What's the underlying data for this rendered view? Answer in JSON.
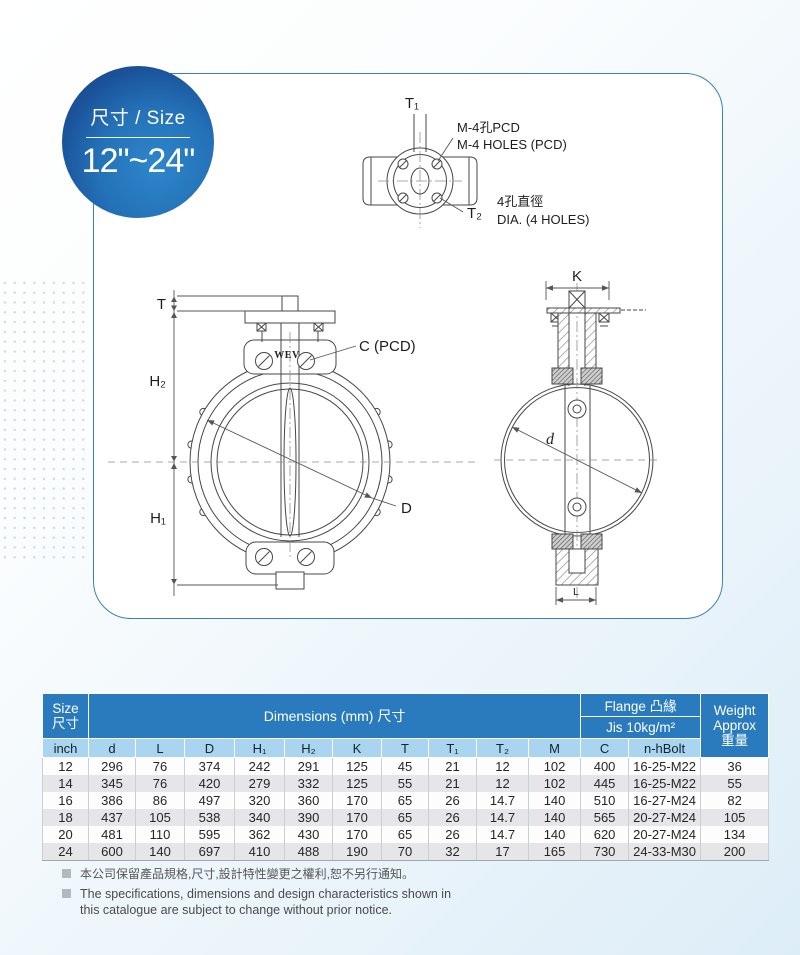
{
  "badge": {
    "title": "尺寸 / Size",
    "range": "12\"~24\""
  },
  "drawings": {
    "top_view": {
      "t1": "T₁",
      "t2": "T₂",
      "m4_cjk": "M-4孔PCD",
      "m4_en": "M-4 HOLES (PCD)",
      "dia_cjk": "4孔直徑",
      "dia_en": "DIA. (4 HOLES)"
    },
    "front_view": {
      "t": "T",
      "h2": "H₂",
      "h1": "H₁",
      "c_pcd": "C (PCD)",
      "d_outer": "D",
      "brand": "WEV"
    },
    "side_view": {
      "k": "K",
      "d_inner": "d",
      "l": "L"
    }
  },
  "table": {
    "header": {
      "size_en": "Size",
      "size_cjk": "尺寸",
      "dimensions": "Dimensions (mm) 尺寸",
      "flange": "Flange 凸緣",
      "jis": "Jis 10kg/m²",
      "weight_l1": "Weight",
      "weight_l2": "Approx",
      "weight_l3": "重量"
    },
    "columns": [
      "inch",
      "d",
      "L",
      "D",
      "H₁",
      "H₂",
      "K",
      "T",
      "T₁",
      "T₂",
      "M",
      "C",
      "n-hBolt"
    ],
    "rows": [
      [
        "12",
        "296",
        "76",
        "374",
        "242",
        "291",
        "125",
        "45",
        "21",
        "12",
        "102",
        "400",
        "16-25-M22",
        "36"
      ],
      [
        "14",
        "345",
        "76",
        "420",
        "279",
        "332",
        "125",
        "55",
        "21",
        "12",
        "102",
        "445",
        "16-25-M22",
        "55"
      ],
      [
        "16",
        "386",
        "86",
        "497",
        "320",
        "360",
        "170",
        "65",
        "26",
        "14.7",
        "140",
        "510",
        "16-27-M24",
        "82"
      ],
      [
        "18",
        "437",
        "105",
        "538",
        "340",
        "390",
        "170",
        "65",
        "26",
        "14.7",
        "140",
        "565",
        "20-27-M24",
        "105"
      ],
      [
        "20",
        "481",
        "110",
        "595",
        "362",
        "430",
        "170",
        "65",
        "26",
        "14.7",
        "140",
        "620",
        "20-27-M24",
        "134"
      ],
      [
        "24",
        "600",
        "140",
        "697",
        "410",
        "488",
        "190",
        "70",
        "32",
        "17",
        "165",
        "730",
        "24-33-M30",
        "200"
      ]
    ]
  },
  "footnotes": {
    "cjk": "本公司保留產品規格,尺寸,設計特性變更之權利,恕不另行通知。",
    "en": "The specifications, dimensions and design characteristics shown in this catalogue are subject to change without prior notice."
  }
}
